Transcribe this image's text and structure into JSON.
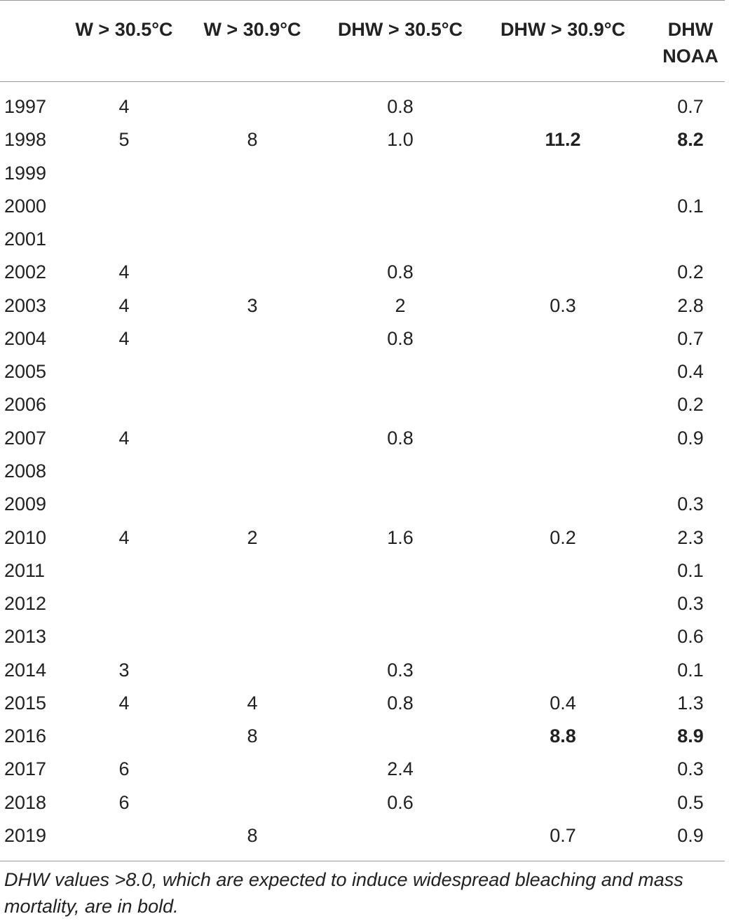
{
  "table": {
    "headers": [
      "W > 30.5°C",
      "W > 30.9°C",
      "DHW > 30.5°C",
      "DHW > 30.9°C",
      "DHW NOAA"
    ],
    "rows": [
      [
        "1997",
        "4",
        null,
        "0.8",
        null,
        "0.7"
      ],
      [
        "1998",
        "5",
        "8",
        "1.0",
        "11.2",
        "8.2"
      ],
      [
        "1999",
        null,
        null,
        null,
        null,
        null
      ],
      [
        "2000",
        null,
        null,
        null,
        null,
        "0.1"
      ],
      [
        "2001",
        null,
        null,
        null,
        null,
        null
      ],
      [
        "2002",
        "4",
        null,
        "0.8",
        null,
        "0.2"
      ],
      [
        "2003",
        "4",
        "3",
        "2",
        "0.3",
        "2.8"
      ],
      [
        "2004",
        "4",
        null,
        "0.8",
        null,
        "0.7"
      ],
      [
        "2005",
        null,
        null,
        null,
        null,
        "0.4"
      ],
      [
        "2006",
        null,
        null,
        null,
        null,
        "0.2"
      ],
      [
        "2007",
        "4",
        null,
        "0.8",
        null,
        "0.9"
      ],
      [
        "2008",
        null,
        null,
        null,
        null,
        null
      ],
      [
        "2009",
        null,
        null,
        null,
        null,
        "0.3"
      ],
      [
        "2010",
        "4",
        "2",
        "1.6",
        "0.2",
        "2.3"
      ],
      [
        "2011",
        null,
        null,
        null,
        null,
        "0.1"
      ],
      [
        "2012",
        null,
        null,
        null,
        null,
        "0.3"
      ],
      [
        "2013",
        null,
        null,
        null,
        null,
        "0.6"
      ],
      [
        "2014",
        "3",
        null,
        "0.3",
        null,
        "0.1"
      ],
      [
        "2015",
        "4",
        "4",
        "0.8",
        "0.4",
        "1.3"
      ],
      [
        "2016",
        null,
        "8",
        null,
        "8.8",
        "8.9"
      ],
      [
        "2017",
        "6",
        null,
        "2.4",
        null,
        "0.3"
      ],
      [
        "2018",
        "6",
        null,
        "0.6",
        null,
        "0.5"
      ],
      [
        "2019",
        null,
        "8",
        null,
        "0.7",
        "0.9"
      ]
    ],
    "bold_cells": [
      "1.4",
      "1.5",
      "19.4",
      "19.5"
    ],
    "footnote": "DHW values >8.0, which are expected to induce widespread bleaching and mass mortality, are in bold."
  }
}
